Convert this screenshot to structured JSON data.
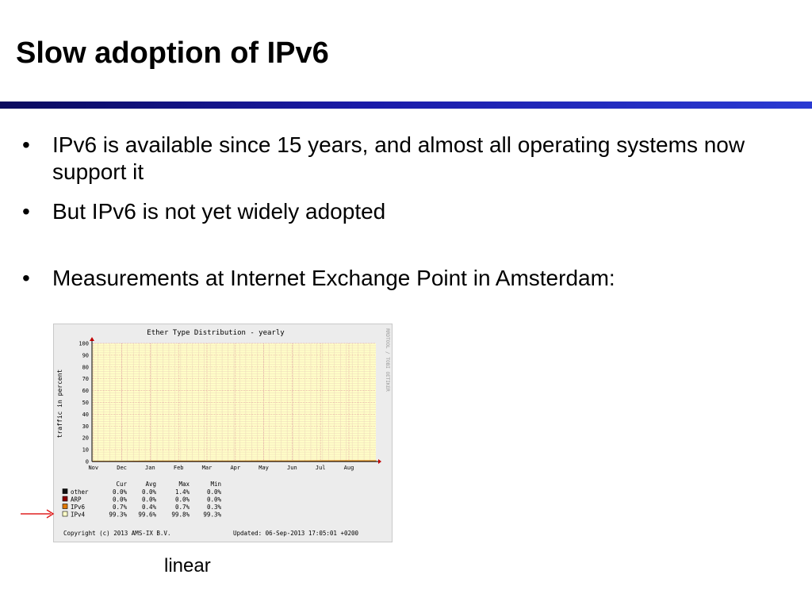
{
  "slide": {
    "title": "Slow adoption of IPv6",
    "bullets": [
      "IPv6 is available since 15 years, and almost all operating systems now support it",
      "But IPv6 is not yet widely adopted",
      "Measurements at Internet Exchange Point in Amsterdam:"
    ],
    "caption": "linear"
  },
  "chart_data": {
    "type": "area",
    "title": "Ether Type Distribution - yearly",
    "ylabel": "traffic in percent",
    "side_label": "RRDTOOL / TOBI OETIKER",
    "ylim": [
      0,
      100
    ],
    "yticks": [
      0,
      10,
      20,
      30,
      40,
      50,
      60,
      70,
      80,
      90,
      100
    ],
    "categories": [
      "Nov",
      "Dec",
      "Jan",
      "Feb",
      "Mar",
      "Apr",
      "May",
      "Jun",
      "Jul",
      "Aug"
    ],
    "grid": true,
    "legend": {
      "headers": [
        "Cur",
        "Avg",
        "Max",
        "Min"
      ],
      "rows": [
        {
          "name": "other",
          "color": "#111111",
          "cur": "0.0%",
          "avg": "0.0%",
          "max": "1.4%",
          "min": "0.0%"
        },
        {
          "name": "ARP",
          "color": "#8b0000",
          "cur": "0.0%",
          "avg": "0.0%",
          "max": "0.0%",
          "min": "0.0%"
        },
        {
          "name": "IPv6",
          "color": "#e07800",
          "cur": "0.7%",
          "avg": "0.4%",
          "max": "0.7%",
          "min": "0.3%"
        },
        {
          "name": "IPv4",
          "color": "#ffffc8",
          "cur": "99.3%",
          "avg": "99.6%",
          "max": "99.8%",
          "min": "99.3%"
        }
      ]
    },
    "series": [
      {
        "name": "IPv4",
        "values": [
          99.7,
          99.7,
          99.6,
          99.6,
          99.6,
          99.6,
          99.5,
          99.5,
          99.4,
          99.3
        ]
      },
      {
        "name": "IPv6",
        "values": [
          0.3,
          0.3,
          0.4,
          0.4,
          0.4,
          0.4,
          0.5,
          0.5,
          0.6,
          0.7
        ]
      }
    ],
    "footer_left": "Copyright (c) 2013 AMS-IX B.V.",
    "footer_right": "Updated: 06-Sep-2013 17:05:01 +0200"
  }
}
